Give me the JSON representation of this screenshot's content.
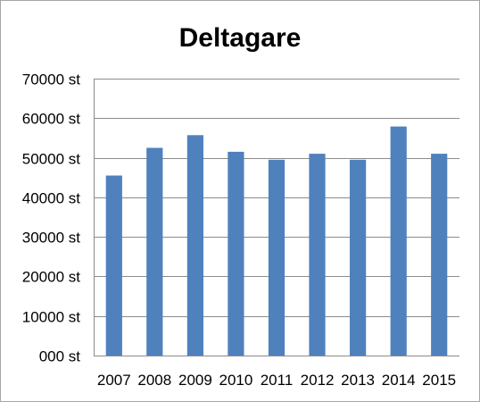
{
  "chart_data": {
    "type": "bar",
    "title": "Deltagare",
    "categories": [
      "2007",
      "2008",
      "2009",
      "2010",
      "2011",
      "2012",
      "2013",
      "2014",
      "2015"
    ],
    "values": [
      45500,
      52500,
      55700,
      51500,
      49500,
      51000,
      49500,
      57900,
      51000
    ],
    "ylim": [
      0,
      70000
    ],
    "yticks": [
      0,
      10000,
      20000,
      30000,
      40000,
      50000,
      60000,
      70000
    ],
    "ytick_labels": [
      "000 st",
      "10000 st",
      "20000 st",
      "30000 st",
      "40000 st",
      "50000 st",
      "60000 st",
      "70000 st"
    ],
    "xlabel": "",
    "ylabel": "",
    "grid": true,
    "legend": "none",
    "bar_color": "#4f81bd"
  }
}
